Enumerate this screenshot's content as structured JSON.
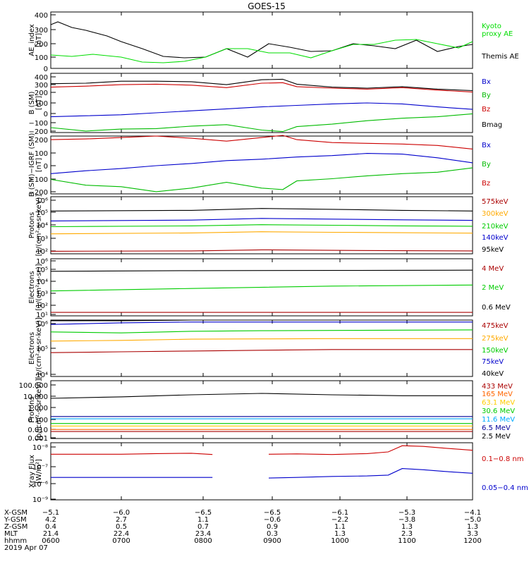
{
  "title": "GOES-15",
  "panels": [
    {
      "id": "ae",
      "ylabel": [
        "AE_index",
        "[nT]"
      ],
      "yticks": [
        "400",
        "300",
        "200",
        "100",
        "0"
      ],
      "legend": [
        {
          "text": "Kyoto",
          "color": "#00dd00"
        },
        {
          "text": "proxy AE",
          "color": "#00dd00"
        },
        {
          "text": "Themis AE",
          "color": "#000000"
        }
      ]
    },
    {
      "id": "bsm",
      "ylabel": [
        "B (SM)",
        "[nT]"
      ],
      "yticks": [
        "400",
        "300",
        "200",
        "100",
        "0",
        "−100",
        "−200"
      ],
      "legend": [
        {
          "text": "Bx",
          "color": "#0000cc"
        },
        {
          "text": "By",
          "color": "#00bb00"
        },
        {
          "text": "Bz",
          "color": "#cc0000"
        },
        {
          "text": "Bmag",
          "color": "#000000"
        }
      ]
    },
    {
      "id": "bigrf",
      "ylabel": [
        "B (SM)−IGRF (SM)",
        "[nT]"
      ],
      "yticks": [
        "200",
        "100",
        "0",
        "−100",
        "−200"
      ],
      "legend": [
        {
          "text": "Bx",
          "color": "#0000cc"
        },
        {
          "text": "By",
          "color": "#00bb00"
        },
        {
          "text": "Bz",
          "color": "#cc0000"
        }
      ]
    },
    {
      "id": "protons_hi",
      "ylabel": [
        "Protons",
        "[1/(cm²-s-sr-keV)]"
      ],
      "yticks": [
        "10⁶",
        "10⁵",
        "10⁴",
        "10³",
        "10²"
      ],
      "legend": [
        {
          "text": "575keV",
          "color": "#aa0000"
        },
        {
          "text": "300keV",
          "color": "#ffaa00"
        },
        {
          "text": "210keV",
          "color": "#00cc00"
        },
        {
          "text": "140keV",
          "color": "#0000cc"
        },
        {
          "text": "95keV",
          "color": "#000000"
        }
      ]
    },
    {
      "id": "electrons_mev",
      "ylabel": [
        "Electrons",
        "[1/(cm²-s-sr)]"
      ],
      "yticks": [
        "10⁶",
        "10⁵",
        "10⁴",
        "10³",
        "10²",
        "10¹"
      ],
      "legend": [
        {
          "text": "4 MeV",
          "color": "#aa0000"
        },
        {
          "text": "2 MeV",
          "color": "#00cc00"
        },
        {
          "text": "0.6 MeV",
          "color": "#000000"
        }
      ]
    },
    {
      "id": "electrons_kev",
      "ylabel": [
        "Electrons",
        "[1/(cm²-s-sr-keV)]"
      ],
      "yticks": [
        "10⁶",
        "10⁵",
        "10⁴"
      ],
      "legend": [
        {
          "text": "475keV",
          "color": "#aa0000"
        },
        {
          "text": "275keV",
          "color": "#ffaa00"
        },
        {
          "text": "150keV",
          "color": "#00cc00"
        },
        {
          "text": "75keV",
          "color": "#0000cc"
        },
        {
          "text": "40keV",
          "color": "#000000"
        }
      ]
    },
    {
      "id": "protons_mev",
      "ylabel": [
        "Protons",
        "[p/(cm²-s-sr-keV)]"
      ],
      "yticks": [
        "100.000",
        "10.000",
        "1.000",
        "0.100",
        "0.010",
        "0.001"
      ],
      "legend": [
        {
          "text": "433 MeV",
          "color": "#aa0000"
        },
        {
          "text": "165 MeV",
          "color": "#ff6600"
        },
        {
          "text": "63.1 MeV",
          "color": "#ffcc00"
        },
        {
          "text": "30.6 MeV",
          "color": "#00cc00"
        },
        {
          "text": "11.6 MeV",
          "color": "#00aaff"
        },
        {
          "text": "6.5 MeV",
          "color": "#000099"
        },
        {
          "text": "2.5 MeV",
          "color": "#000000"
        }
      ]
    },
    {
      "id": "xray",
      "ylabel": [
        "Xray Flux",
        "[W/m²]"
      ],
      "yticks": [
        "10⁻⁸",
        "10⁻⁷",
        "10⁻⁶",
        "10⁻⁹"
      ],
      "legend": [
        {
          "text": "0.1−0.8 nm",
          "color": "#cc0000"
        },
        {
          "text": "0.05−0.4 nm",
          "color": "#0000cc"
        }
      ]
    }
  ],
  "footer": {
    "row_labels": [
      "X-GSM",
      "Y-GSM",
      "Z-GSM",
      "MLT",
      "hhmm",
      "2019 Apr 07"
    ],
    "columns": [
      [
        "−5.1",
        "4.2",
        "0.4",
        "21.4",
        "0600"
      ],
      [
        "−6.0",
        "2.7",
        "0.5",
        "22.4",
        "0700"
      ],
      [
        "−6.5",
        "1.1",
        "0.7",
        "23.4",
        "0800"
      ],
      [
        "−6.5",
        "−0.6",
        "0.9",
        "0.3",
        "0900"
      ],
      [
        "−6.1",
        "−2.2",
        "1.1",
        "1.3",
        "1000"
      ],
      [
        "−5.3",
        "−3.8",
        "1.3",
        "2.3",
        "1100"
      ],
      [
        "−4.1",
        "−5.0",
        "1.3",
        "3.3",
        "1200"
      ]
    ]
  },
  "chart_data": {
    "type": "line",
    "title": "GOES-15",
    "x_ticks": [
      "0600",
      "0700",
      "0800",
      "0900",
      "1000",
      "1100",
      "1200"
    ],
    "x_range": [
      6.0,
      12.0
    ],
    "ae_index": {
      "ylim": [
        0,
        400
      ],
      "series": [
        {
          "name": "Themis AE",
          "color": "#000000",
          "x": [
            6.0,
            6.1,
            6.3,
            6.5,
            6.8,
            7.0,
            7.3,
            7.6,
            7.9,
            8.2,
            8.5,
            8.8,
            9.1,
            9.4,
            9.7,
            10.0,
            10.3,
            10.6,
            10.9,
            11.2,
            11.5,
            11.8,
            12.0
          ],
          "y": [
            310,
            330,
            290,
            270,
            230,
            190,
            140,
            85,
            75,
            80,
            140,
            80,
            175,
            150,
            120,
            125,
            175,
            160,
            140,
            200,
            120,
            155,
            170
          ]
        },
        {
          "name": "Kyoto proxy AE",
          "color": "#00dd00",
          "x": [
            6.0,
            6.3,
            6.6,
            7.0,
            7.3,
            7.6,
            7.9,
            8.2,
            8.5,
            8.8,
            9.1,
            9.4,
            9.7,
            10.0,
            10.3,
            10.6,
            10.9,
            11.2,
            11.5,
            11.8,
            12.0
          ],
          "y": [
            95,
            85,
            100,
            80,
            45,
            40,
            50,
            80,
            140,
            140,
            110,
            110,
            75,
            125,
            170,
            170,
            200,
            205,
            175,
            145,
            190
          ]
        }
      ]
    },
    "b_sm": {
      "ylim": [
        -200,
        400
      ],
      "series": [
        {
          "name": "Bmag",
          "color": "#000000",
          "x": [
            6.0,
            6.5,
            7.0,
            7.5,
            8.0,
            8.5,
            9.0,
            9.3,
            9.5,
            10.0,
            10.5,
            11.0,
            11.5,
            12.0
          ],
          "y": [
            295,
            300,
            320,
            320,
            315,
            285,
            335,
            340,
            290,
            260,
            250,
            265,
            240,
            225
          ]
        },
        {
          "name": "Bz",
          "color": "#cc0000",
          "x": [
            6.0,
            6.5,
            7.0,
            7.5,
            8.0,
            8.5,
            9.0,
            9.3,
            9.5,
            10.0,
            10.5,
            11.0,
            11.5,
            12.0
          ],
          "y": [
            260,
            270,
            285,
            290,
            280,
            255,
            300,
            305,
            265,
            250,
            240,
            255,
            230,
            210
          ]
        },
        {
          "name": "Bx",
          "color": "#0000cc",
          "x": [
            6.0,
            6.5,
            7.0,
            7.5,
            8.0,
            8.5,
            9.0,
            9.5,
            10.0,
            10.5,
            11.0,
            11.5,
            12.0
          ],
          "y": [
            -40,
            -30,
            -20,
            0,
            20,
            40,
            60,
            75,
            90,
            100,
            90,
            60,
            35
          ]
        },
        {
          "name": "By",
          "color": "#00bb00",
          "x": [
            6.0,
            6.5,
            7.0,
            7.5,
            8.0,
            8.5,
            9.0,
            9.3,
            9.5,
            10.0,
            10.5,
            11.0,
            11.5,
            12.0
          ],
          "y": [
            -150,
            -185,
            -165,
            -160,
            -135,
            -120,
            -175,
            -190,
            -140,
            -115,
            -80,
            -55,
            -40,
            -10
          ]
        }
      ]
    },
    "b_minus_igrf": {
      "ylim": [
        -200,
        200
      ],
      "series": [
        {
          "name": "Bz",
          "color": "#cc0000",
          "x": [
            6.0,
            6.5,
            7.0,
            7.5,
            8.0,
            8.5,
            9.0,
            9.3,
            9.5,
            10.0,
            10.5,
            11.0,
            11.5,
            12.0
          ],
          "y": [
            175,
            180,
            190,
            200,
            185,
            165,
            190,
            205,
            175,
            155,
            150,
            145,
            135,
            110
          ]
        },
        {
          "name": "Bx",
          "color": "#0000cc",
          "x": [
            6.0,
            6.5,
            7.0,
            7.5,
            8.0,
            8.5,
            9.0,
            9.5,
            10.0,
            10.5,
            11.0,
            11.5,
            12.0
          ],
          "y": [
            -60,
            -40,
            -25,
            -5,
            10,
            30,
            40,
            55,
            65,
            80,
            75,
            50,
            15
          ]
        },
        {
          "name": "By",
          "color": "#00bb00",
          "x": [
            6.0,
            6.5,
            7.0,
            7.5,
            8.0,
            8.5,
            9.0,
            9.3,
            9.5,
            10.0,
            10.5,
            11.0,
            11.5,
            12.0
          ],
          "y": [
            -100,
            -140,
            -150,
            -185,
            -160,
            -120,
            -160,
            -170,
            -110,
            -95,
            -75,
            -60,
            -50,
            -20
          ]
        }
      ]
    },
    "protons_kev": {
      "log_scale": true,
      "ylim": [
        100,
        1000000
      ],
      "series": [
        {
          "name": "95keV",
          "color": "#000000",
          "x": [
            6,
            8,
            9,
            10,
            11,
            12
          ],
          "y": [
            100000,
            110000,
            150000,
            130000,
            110000,
            100000
          ]
        },
        {
          "name": "140keV",
          "color": "#0000cc",
          "x": [
            6,
            8,
            9,
            10,
            11,
            12
          ],
          "y": [
            20000,
            23000,
            30000,
            27000,
            24000,
            22000
          ]
        },
        {
          "name": "210keV",
          "color": "#00cc00",
          "x": [
            6,
            8,
            9,
            10,
            11,
            12
          ],
          "y": [
            8000,
            9000,
            11000,
            10000,
            9000,
            8500
          ]
        },
        {
          "name": "300keV",
          "color": "#ffaa00",
          "x": [
            6,
            8,
            9,
            10,
            11,
            12
          ],
          "y": [
            2500,
            2900,
            3500,
            3200,
            3000,
            2800
          ]
        },
        {
          "name": "575keV",
          "color": "#aa0000",
          "x": [
            6,
            8,
            9,
            10,
            11,
            12
          ],
          "y": [
            150,
            160,
            190,
            175,
            165,
            160
          ]
        }
      ]
    },
    "electrons_mev": {
      "log_scale": true,
      "ylim": [
        10,
        1000000
      ],
      "series": [
        {
          "name": "0.6 MeV",
          "color": "#000000",
          "x": [
            6,
            8,
            10,
            12
          ],
          "y": [
            80000,
            90000,
            95000,
            100000
          ]
        },
        {
          "name": "2 MeV",
          "color": "#00cc00",
          "x": [
            6,
            8,
            10,
            12
          ],
          "y": [
            1500,
            2500,
            4000,
            5000
          ]
        },
        {
          "name": "4 MeV",
          "color": "#aa0000",
          "x": [
            6,
            8,
            10,
            12
          ],
          "y": [
            20,
            20,
            20,
            20
          ]
        }
      ]
    },
    "electrons_kev": {
      "log_scale": true,
      "ylim": [
        10000,
        1000000
      ],
      "series": [
        {
          "name": "40keV",
          "color": "#000000",
          "x": [
            6,
            7,
            8,
            9,
            10,
            11,
            12
          ],
          "y": [
            950000,
            950000,
            1000000,
            1000000,
            1000000,
            1000000,
            1000000
          ]
        },
        {
          "name": "75keV",
          "color": "#0000cc",
          "x": [
            6,
            7,
            8,
            9,
            10,
            11,
            12
          ],
          "y": [
            700000,
            800000,
            850000,
            850000,
            850000,
            850000,
            850000
          ]
        },
        {
          "name": "150keV",
          "color": "#00cc00",
          "x": [
            6,
            7,
            8,
            9,
            10,
            11,
            12
          ],
          "y": [
            380000,
            350000,
            400000,
            420000,
            430000,
            440000,
            450000
          ]
        },
        {
          "name": "275keV",
          "color": "#ffaa00",
          "x": [
            6,
            7,
            8,
            9,
            10,
            11,
            12
          ],
          "y": [
            180000,
            190000,
            210000,
            215000,
            220000,
            220000,
            220000
          ]
        },
        {
          "name": "475keV",
          "color": "#aa0000",
          "x": [
            6,
            7,
            8,
            9,
            10,
            11,
            12
          ],
          "y": [
            70000,
            75000,
            80000,
            85000,
            90000,
            90000,
            90000
          ]
        }
      ]
    },
    "protons_mev": {
      "log_scale": true,
      "ylim": [
        0.001,
        100
      ],
      "series": [
        {
          "name": "2.5 MeV",
          "color": "#000000",
          "x": [
            6,
            7,
            8,
            9,
            10,
            11,
            12
          ],
          "y": [
            3.0,
            4.0,
            6.0,
            8.0,
            6.0,
            5.0,
            5.0
          ]
        },
        {
          "name": "6.5 MeV",
          "color": "#000099",
          "x": [
            6,
            12
          ],
          "y": [
            0.08,
            0.08
          ]
        },
        {
          "name": "11.6 MeV",
          "color": "#00aaff",
          "x": [
            6,
            12
          ],
          "y": [
            0.05,
            0.05
          ]
        },
        {
          "name": "30.6 MeV",
          "color": "#00cc00",
          "x": [
            6,
            12
          ],
          "y": [
            0.02,
            0.02
          ]
        },
        {
          "name": "63.1 MeV",
          "color": "#ffcc00",
          "x": [
            6,
            12
          ],
          "y": [
            0.012,
            0.012
          ]
        },
        {
          "name": "165 MeV",
          "color": "#ff6600",
          "x": [
            6,
            12
          ],
          "y": [
            0.006,
            0.006
          ]
        },
        {
          "name": "433 MeV",
          "color": "#aa0000",
          "x": [
            6,
            12
          ],
          "y": [
            0.004,
            0.004
          ]
        }
      ]
    },
    "xray_flux": {
      "log_scale": true,
      "ylim": [
        1e-09,
        1e-06
      ],
      "series": [
        {
          "name": "0.1−0.8 nm",
          "color": "#cc0000",
          "x": [
            6.0,
            6.5,
            7.0,
            7.5,
            8.0,
            8.3,
            9.1,
            9.5,
            10.0,
            10.5,
            10.8,
            11.0,
            11.3,
            11.6,
            12.0
          ],
          "y": [
            2.5e-07,
            2.5e-07,
            2.5e-07,
            2.7e-07,
            2.8e-07,
            2.4e-07,
            2.5e-07,
            2.6e-07,
            2.4e-07,
            2.7e-07,
            3.3e-07,
            7e-07,
            6.4e-07,
            5.2e-07,
            4e-07
          ]
        },
        {
          "name": "0.05−0.4 nm",
          "color": "#0000cc",
          "x": [
            6.0,
            6.5,
            7.0,
            7.5,
            8.0,
            8.3,
            9.1,
            9.5,
            10.0,
            10.5,
            10.8,
            11.0,
            11.3,
            11.6,
            12.0
          ],
          "y": [
            1.5e-08,
            1.5e-08,
            1.5e-08,
            1.5e-08,
            1.5e-08,
            1.5e-08,
            1.4e-08,
            1.5e-08,
            1.7e-08,
            1.8e-08,
            2e-08,
            4.4e-08,
            3.8e-08,
            3.1e-08,
            2.5e-08
          ]
        }
      ]
    }
  }
}
